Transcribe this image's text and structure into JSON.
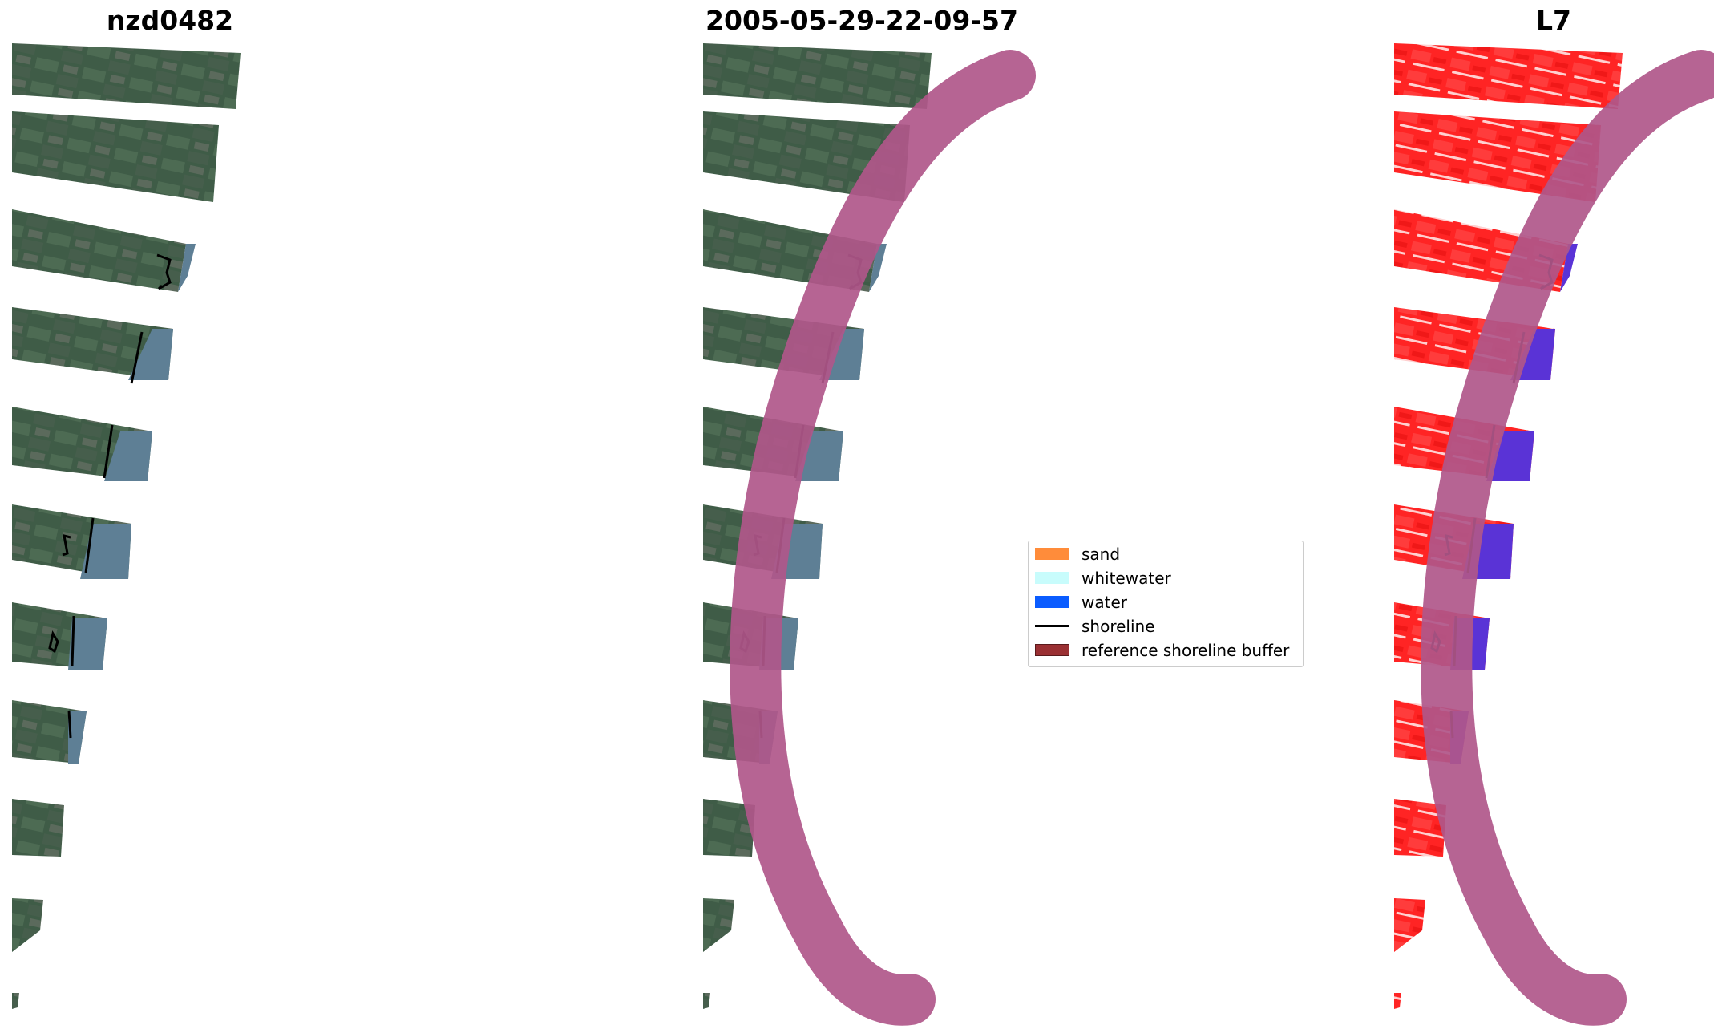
{
  "panels": [
    {
      "title": "nzd0482"
    },
    {
      "title": "2005-05-29-22-09-57"
    },
    {
      "title": "L7"
    }
  ],
  "legend": [
    {
      "label": "sand",
      "kind": "patch",
      "color": "#ff8c3a"
    },
    {
      "label": "whitewater",
      "kind": "patch",
      "color": "#c8fcfc"
    },
    {
      "label": "water",
      "kind": "patch",
      "color": "#0a5cff"
    },
    {
      "label": "shoreline",
      "kind": "line",
      "color": "#000000"
    },
    {
      "label": "reference shoreline buffer",
      "kind": "patch",
      "color": "#9a3033"
    }
  ],
  "colors": {
    "rgb_land_dark": "#3d5a45",
    "rgb_land_mid": "#4c6a55",
    "rgb_water": "#5e7f95",
    "classified_land": "#ff2020",
    "classified_water": "#5a33d6",
    "buffer_overlay": "#b0578a"
  }
}
